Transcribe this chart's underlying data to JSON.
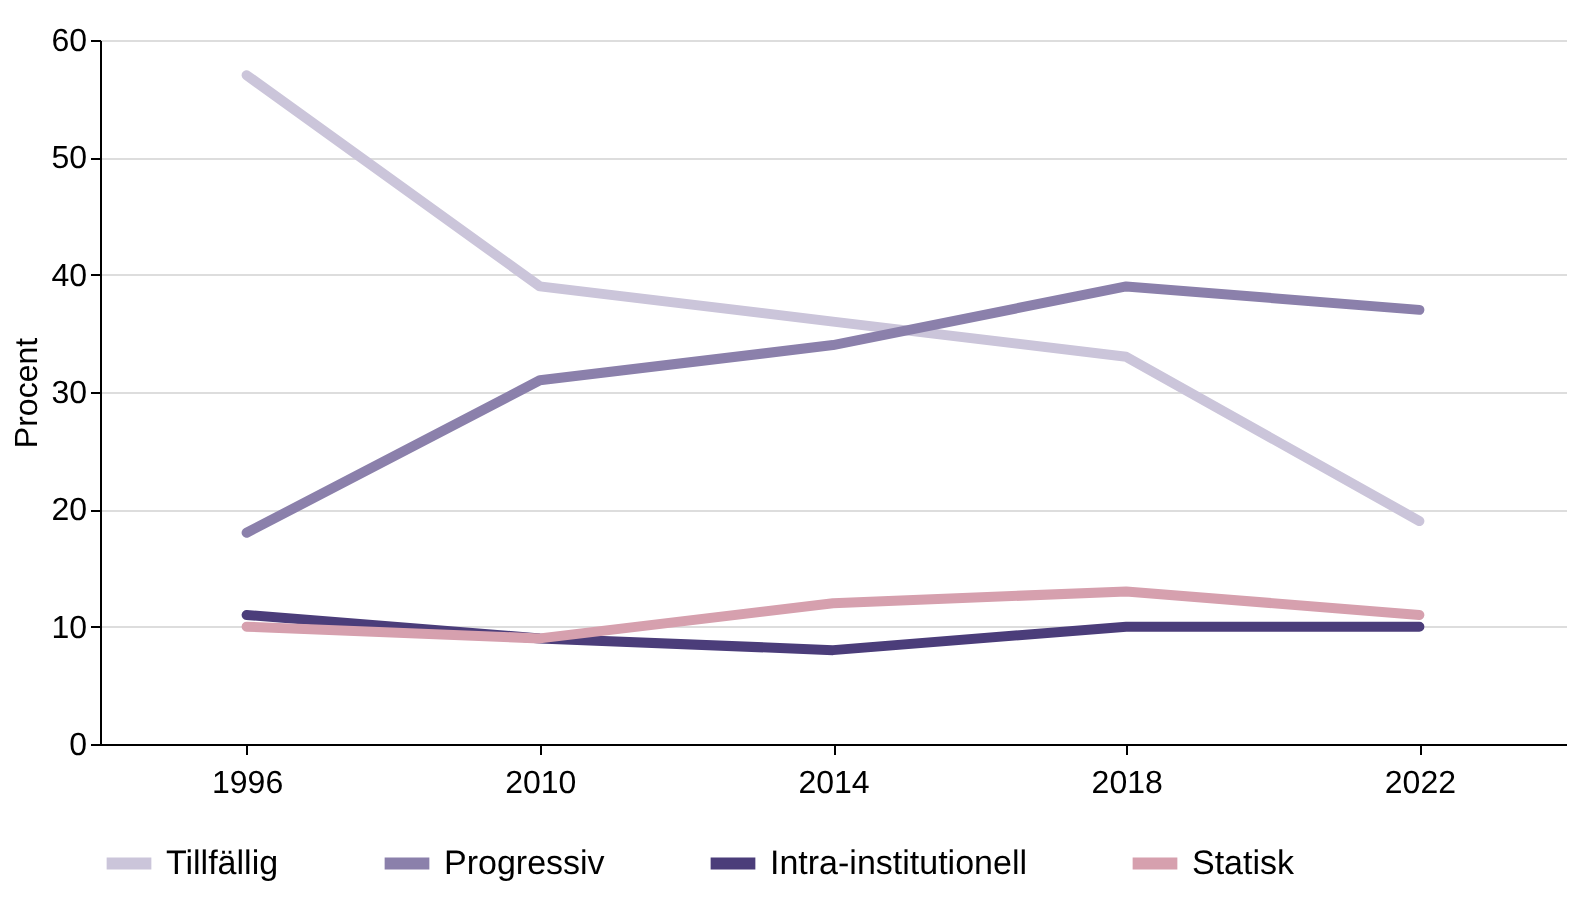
{
  "chart_data": {
    "type": "line",
    "ylabel": "Procent",
    "categories": [
      "1996",
      "2010",
      "2014",
      "2018",
      "2022"
    ],
    "series": [
      {
        "name": "Tillfällig",
        "color": "#cbc5da",
        "values": [
          57,
          39,
          36,
          33,
          19
        ]
      },
      {
        "name": "Progressiv",
        "color": "#8b80ab",
        "values": [
          18,
          31,
          34,
          39,
          37
        ]
      },
      {
        "name": "Intra-institutionell",
        "color": "#4b3d7a",
        "values": [
          11,
          9,
          8,
          10,
          10
        ]
      },
      {
        "name": "Statisk",
        "color": "#d6a0ae",
        "values": [
          10,
          9,
          12,
          13,
          11
        ]
      }
    ],
    "ylim": [
      0,
      60
    ],
    "yticks": [
      0,
      10,
      20,
      30,
      40,
      50,
      60
    ],
    "grid": "y",
    "legend": "bottom",
    "marker": "none",
    "line_style": "solid"
  }
}
